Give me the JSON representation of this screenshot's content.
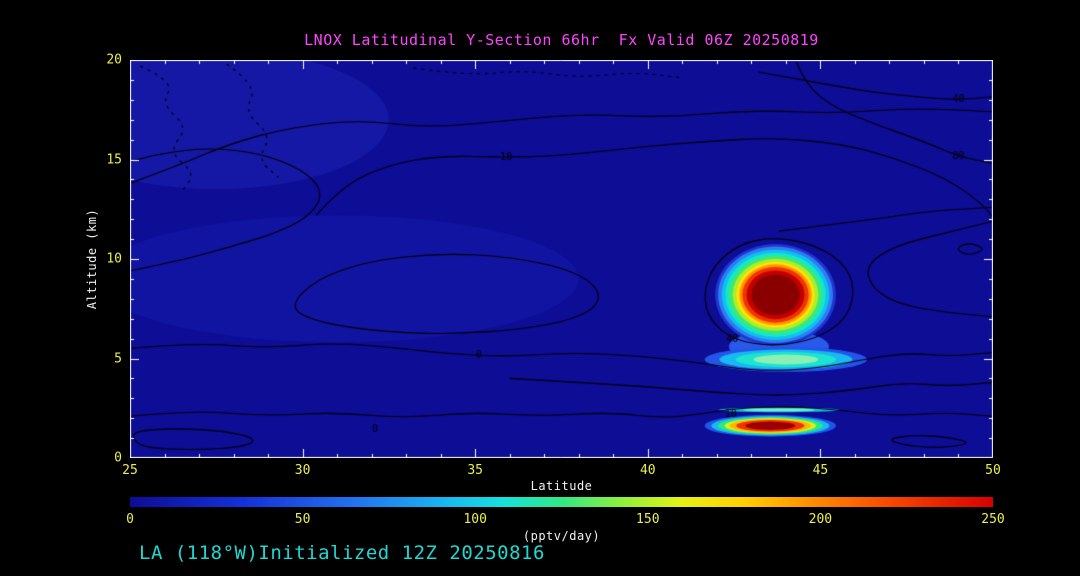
{
  "title": "LNOX Latitudinal Y-Section 66hr  Fx Valid 06Z 20250819",
  "footer": "LA (118°W)Initialized 12Z 20250816",
  "colors": {
    "page_bg": "#000000",
    "plot_bg": "#0d0d96",
    "title": "#ff44ff",
    "tick_labels": "#eded4e",
    "axis_titles": "#f2f2f2",
    "axis_lines": "#ffffff",
    "footer": "#1fd8d2",
    "contour_lines": "#000000"
  },
  "chart_data": {
    "type": "heatmap",
    "title": "LNOX Latitudinal Y-Section 66hr  Fx Valid 06Z 20250819",
    "xlabel": "Latitude",
    "ylabel": "Altitude (km)",
    "xlim": [
      25,
      50
    ],
    "ylim": [
      0,
      20
    ],
    "x_ticks": [
      25,
      30,
      35,
      40,
      45,
      50
    ],
    "y_ticks": [
      0,
      5,
      10,
      15,
      20
    ],
    "grid": false,
    "colorbar": {
      "label": "(pptv/day)",
      "min": 0,
      "max": 250,
      "ticks": [
        0,
        50,
        100,
        150,
        200,
        250
      ],
      "orientation": "horizontal",
      "stops": [
        {
          "pos": 0.0,
          "color": "#0d0d96"
        },
        {
          "pos": 0.13,
          "color": "#1430d8"
        },
        {
          "pos": 0.26,
          "color": "#2272f0"
        },
        {
          "pos": 0.36,
          "color": "#18b4f2"
        },
        {
          "pos": 0.43,
          "color": "#16e0de"
        },
        {
          "pos": 0.5,
          "color": "#30e986"
        },
        {
          "pos": 0.57,
          "color": "#90f03a"
        },
        {
          "pos": 0.64,
          "color": "#e6f214"
        },
        {
          "pos": 0.71,
          "color": "#ffd000"
        },
        {
          "pos": 0.79,
          "color": "#ff8e00"
        },
        {
          "pos": 0.88,
          "color": "#f84800"
        },
        {
          "pos": 1.0,
          "color": "#d80000"
        }
      ]
    },
    "features": [
      {
        "name": "upper-tropospheric-plume",
        "center": {
          "lat": 43.7,
          "alt_km": 8.2
        },
        "extent_lat": [
          42.0,
          45.4
        ],
        "extent_alt_km": [
          5.7,
          10.7
        ],
        "peak_pptv_per_day": 250
      },
      {
        "name": "mid-level-band",
        "center": {
          "lat": 44.0,
          "alt_km": 4.95
        },
        "extent_lat": [
          41.7,
          46.3
        ],
        "extent_alt_km": [
          4.3,
          5.6
        ],
        "peak_pptv_per_day": 120
      },
      {
        "name": "boundary-layer-plume",
        "center": {
          "lat": 43.6,
          "alt_km": 1.6
        },
        "extent_lat": [
          41.7,
          45.4
        ],
        "extent_alt_km": [
          1.1,
          2.2
        ],
        "peak_pptv_per_day": 250
      }
    ],
    "contour_levels_labeled": [
      0,
      10,
      40,
      80
    ],
    "contour_labels": [
      {
        "text": "10",
        "lat": 35.9,
        "alt": 15.1
      },
      {
        "text": "40",
        "lat": 49.0,
        "alt": 18.0
      },
      {
        "text": "80",
        "lat": 49.0,
        "alt": 15.15
      },
      {
        "text": "40",
        "lat": 42.45,
        "alt": 5.95
      },
      {
        "text": "0",
        "lat": 35.1,
        "alt": 5.15
      },
      {
        "text": "10",
        "lat": 42.4,
        "alt": 2.2
      },
      {
        "text": "0",
        "lat": 32.1,
        "alt": 1.45
      }
    ],
    "render": {
      "shades": [
        {
          "type": "ellipse",
          "lat": 27.5,
          "alt": 17.0,
          "rlat": 5.0,
          "ralt": 3.5,
          "color": "rgba(35,50,200,0.30)"
        },
        {
          "type": "ellipse",
          "lat": 31.0,
          "alt": 9.0,
          "rlat": 7.0,
          "ralt": 3.2,
          "color": "rgba(30,45,195,0.25)"
        },
        {
          "type": "ellipse",
          "lat": 43.8,
          "alt": 5.6,
          "rlat": 1.45,
          "ralt": 0.8,
          "color": "#2a58ea"
        }
      ],
      "blobs": [
        {
          "lat": 43.7,
          "alt": 8.2,
          "rlat": 1.75,
          "ralt": 2.55,
          "rot": 0,
          "bands": [
            {
              "f": 1.0,
              "c": "#1e35d2"
            },
            {
              "f": 0.95,
              "c": "#2f7df2"
            },
            {
              "f": 0.89,
              "c": "#0fc0f0"
            },
            {
              "f": 0.83,
              "c": "#15e8c8"
            },
            {
              "f": 0.77,
              "c": "#3fe96e"
            },
            {
              "f": 0.71,
              "c": "#aaee30"
            },
            {
              "f": 0.65,
              "c": "#ffe400"
            },
            {
              "f": 0.6,
              "c": "#ff9600"
            },
            {
              "f": 0.55,
              "c": "#f03400"
            },
            {
              "f": 0.48,
              "c": "#c40000"
            },
            {
              "f": 0.4,
              "c": "#8a0000"
            }
          ]
        },
        {
          "lat": 44.0,
          "alt": 4.95,
          "rlat": 2.35,
          "ralt": 0.62,
          "rot": 0,
          "bands": [
            {
              "f": 1.0,
              "c": "#2255e8"
            },
            {
              "f": 0.82,
              "c": "#18b8f0"
            },
            {
              "f": 0.62,
              "c": "#1ce4d0"
            },
            {
              "f": 0.4,
              "c": "#8cf0b4"
            }
          ]
        },
        {
          "lat": 43.55,
          "alt": 1.62,
          "rlat": 1.9,
          "ralt": 0.55,
          "rot": 0,
          "bands": [
            {
              "f": 1.0,
              "c": "#2255e8"
            },
            {
              "f": 0.9,
              "c": "#12bef0"
            },
            {
              "f": 0.8,
              "c": "#2ee87c"
            },
            {
              "f": 0.7,
              "c": "#d8f020"
            },
            {
              "f": 0.62,
              "c": "#ffb400"
            },
            {
              "f": 0.52,
              "c": "#f23000"
            },
            {
              "f": 0.38,
              "c": "#9a0000"
            }
          ]
        },
        {
          "lat": 43.8,
          "alt": 2.42,
          "rlat": 1.75,
          "ralt": 0.12,
          "rot": 0,
          "bands": [
            {
              "f": 1.0,
              "c": "#16c2e8"
            },
            {
              "f": 0.6,
              "c": "#7df0c0"
            }
          ]
        }
      ],
      "contours": [
        {
          "dash": true,
          "closed": false,
          "pts": [
            [
              25.3,
              19.7
            ],
            [
              26.3,
              18.9
            ],
            [
              25.9,
              17.8
            ],
            [
              26.7,
              16.6
            ],
            [
              26.1,
              15.4
            ],
            [
              26.9,
              14.3
            ],
            [
              26.5,
              13.4
            ]
          ]
        },
        {
          "dash": true,
          "closed": false,
          "pts": [
            [
              27.8,
              19.8
            ],
            [
              28.7,
              18.7
            ],
            [
              28.3,
              17.4
            ],
            [
              29.1,
              16.2
            ],
            [
              28.7,
              15.0
            ],
            [
              29.3,
              14.1
            ]
          ]
        },
        {
          "dash": true,
          "closed": false,
          "pts": [
            [
              33.2,
              19.6
            ],
            [
              34.8,
              19.2
            ],
            [
              36.4,
              19.5
            ],
            [
              38.0,
              19.1
            ],
            [
              39.6,
              19.4
            ],
            [
              41.0,
              19.1
            ]
          ]
        },
        {
          "dash": false,
          "closed": false,
          "pts": [
            [
              25,
              13.8
            ],
            [
              26.4,
              14.7
            ],
            [
              27.9,
              15.8
            ],
            [
              29.6,
              16.6
            ],
            [
              31.6,
              17.0
            ],
            [
              33.6,
              16.6
            ],
            [
              35.6,
              16.9
            ],
            [
              38.0,
              17.3
            ],
            [
              40.5,
              17.1
            ],
            [
              43.0,
              17.5
            ],
            [
              45.5,
              17.3
            ],
            [
              47.6,
              17.6
            ],
            [
              50,
              17.4
            ]
          ]
        },
        {
          "dash": false,
          "closed": false,
          "pts": [
            [
              30.4,
              12.2
            ],
            [
              31.1,
              13.6
            ],
            [
              32.4,
              14.7
            ],
            [
              34.0,
              15.2
            ],
            [
              35.9,
              15.1
            ],
            [
              37.6,
              15.2
            ],
            [
              39.6,
              15.6
            ],
            [
              41.6,
              15.9
            ],
            [
              43.6,
              16.1
            ],
            [
              45.6,
              15.8
            ],
            [
              47.1,
              15.1
            ],
            [
              48.6,
              14.1
            ],
            [
              49.6,
              12.9
            ],
            [
              50,
              12.1
            ]
          ]
        },
        {
          "dash": false,
          "closed": true,
          "pts": [
            [
              29.6,
              7.6
            ],
            [
              30.4,
              9.0
            ],
            [
              31.9,
              9.9
            ],
            [
              34.0,
              10.3
            ],
            [
              36.1,
              10.1
            ],
            [
              37.9,
              9.4
            ],
            [
              38.7,
              8.3
            ],
            [
              38.3,
              7.2
            ],
            [
              36.6,
              6.5
            ],
            [
              34.1,
              6.2
            ],
            [
              31.9,
              6.4
            ],
            [
              30.3,
              6.9
            ]
          ]
        },
        {
          "dash": false,
          "closed": true,
          "pts": [
            [
              43.7,
              11.1
            ],
            [
              44.9,
              10.7
            ],
            [
              45.8,
              9.6
            ],
            [
              46.0,
              8.2
            ],
            [
              45.7,
              6.9
            ],
            [
              44.9,
              6.0
            ],
            [
              43.7,
              5.6
            ],
            [
              42.5,
              5.9
            ],
            [
              41.8,
              6.9
            ],
            [
              41.6,
              8.2
            ],
            [
              41.9,
              9.7
            ],
            [
              42.7,
              10.8
            ]
          ]
        },
        {
          "dash": false,
          "closed": false,
          "pts": [
            [
              25,
              5.5
            ],
            [
              26.9,
              5.8
            ],
            [
              28.9,
              5.5
            ],
            [
              30.9,
              5.8
            ],
            [
              32.9,
              5.5
            ],
            [
              34.4,
              5.2
            ],
            [
              36.0,
              5.1
            ],
            [
              37.9,
              5.3
            ],
            [
              39.9,
              5.1
            ],
            [
              41.4,
              4.8
            ],
            [
              43.2,
              4.35
            ],
            [
              44.9,
              4.5
            ],
            [
              46.1,
              4.9
            ],
            [
              47.5,
              5.3
            ],
            [
              48.7,
              5.1
            ],
            [
              50,
              5.3
            ]
          ]
        },
        {
          "dash": false,
          "closed": false,
          "pts": [
            [
              36.0,
              4.0
            ],
            [
              37.9,
              3.8
            ],
            [
              39.9,
              3.6
            ],
            [
              41.9,
              3.3
            ],
            [
              43.9,
              3.1
            ],
            [
              45.9,
              3.4
            ],
            [
              47.4,
              3.8
            ],
            [
              48.7,
              3.6
            ],
            [
              50,
              3.8
            ]
          ]
        },
        {
          "dash": false,
          "closed": false,
          "pts": [
            [
              25,
              2.1
            ],
            [
              26.9,
              2.4
            ],
            [
              28.9,
              2.1
            ],
            [
              30.9,
              2.3
            ],
            [
              32.9,
              2.0
            ],
            [
              34.9,
              2.3
            ],
            [
              36.9,
              2.1
            ],
            [
              38.9,
              2.3
            ],
            [
              40.4,
              2.0
            ],
            [
              41.5,
              2.2
            ],
            [
              42.6,
              2.5
            ],
            [
              44.1,
              2.6
            ],
            [
              45.6,
              2.4
            ],
            [
              47.1,
              2.1
            ],
            [
              48.6,
              2.3
            ],
            [
              50,
              2.1
            ]
          ]
        },
        {
          "dash": false,
          "closed": true,
          "pts": [
            [
              25.1,
              1.35
            ],
            [
              26.3,
              1.5
            ],
            [
              27.8,
              1.35
            ],
            [
              28.7,
              0.95
            ],
            [
              28.3,
              0.55
            ],
            [
              26.9,
              0.4
            ],
            [
              25.5,
              0.5
            ],
            [
              25.1,
              0.85
            ]
          ]
        },
        {
          "dash": false,
          "closed": true,
          "pts": [
            [
              46.9,
              0.95
            ],
            [
              47.7,
              1.15
            ],
            [
              48.7,
              1.05
            ],
            [
              49.4,
              0.75
            ],
            [
              48.6,
              0.5
            ],
            [
              47.5,
              0.6
            ]
          ]
        },
        {
          "dash": false,
          "closed": false,
          "pts": [
            [
              43.2,
              19.4
            ],
            [
              44.8,
              18.9
            ],
            [
              46.4,
              18.4
            ],
            [
              48.0,
              18.1
            ],
            [
              49.0,
              18.0
            ],
            [
              50,
              18.15
            ]
          ]
        },
        {
          "dash": false,
          "closed": false,
          "pts": [
            [
              44.3,
              19.9
            ],
            [
              44.6,
              18.7
            ],
            [
              45.4,
              17.6
            ],
            [
              46.7,
              16.7
            ],
            [
              48.0,
              15.9
            ],
            [
              49.0,
              15.15
            ],
            [
              50,
              14.8
            ]
          ]
        },
        {
          "dash": false,
          "closed": false,
          "pts": [
            [
              50,
              11.9
            ],
            [
              48.6,
              11.3
            ],
            [
              47.2,
              10.7
            ],
            [
              46.3,
              9.7
            ],
            [
              46.5,
              8.5
            ],
            [
              47.3,
              7.7
            ],
            [
              48.7,
              7.3
            ],
            [
              50,
              7.1
            ]
          ]
        },
        {
          "dash": false,
          "closed": true,
          "pts": [
            [
              48.9,
              10.5
            ],
            [
              49.3,
              10.85
            ],
            [
              49.8,
              10.5
            ],
            [
              49.3,
              10.15
            ]
          ]
        },
        {
          "dash": false,
          "closed": false,
          "pts": [
            [
              43.8,
              11.4
            ],
            [
              45.1,
              11.7
            ],
            [
              46.6,
              12.0
            ],
            [
              48.1,
              12.4
            ],
            [
              50,
              12.6
            ]
          ]
        },
        {
          "dash": false,
          "closed": false,
          "pts": [
            [
              25,
              9.4
            ],
            [
              26.4,
              9.9
            ],
            [
              27.9,
              10.6
            ],
            [
              29.4,
              11.4
            ],
            [
              30.3,
              12.3
            ],
            [
              30.6,
              13.4
            ],
            [
              30.0,
              14.5
            ],
            [
              28.8,
              15.3
            ],
            [
              27.3,
              15.6
            ],
            [
              25.9,
              15.3
            ],
            [
              25,
              14.9
            ]
          ]
        }
      ]
    }
  }
}
